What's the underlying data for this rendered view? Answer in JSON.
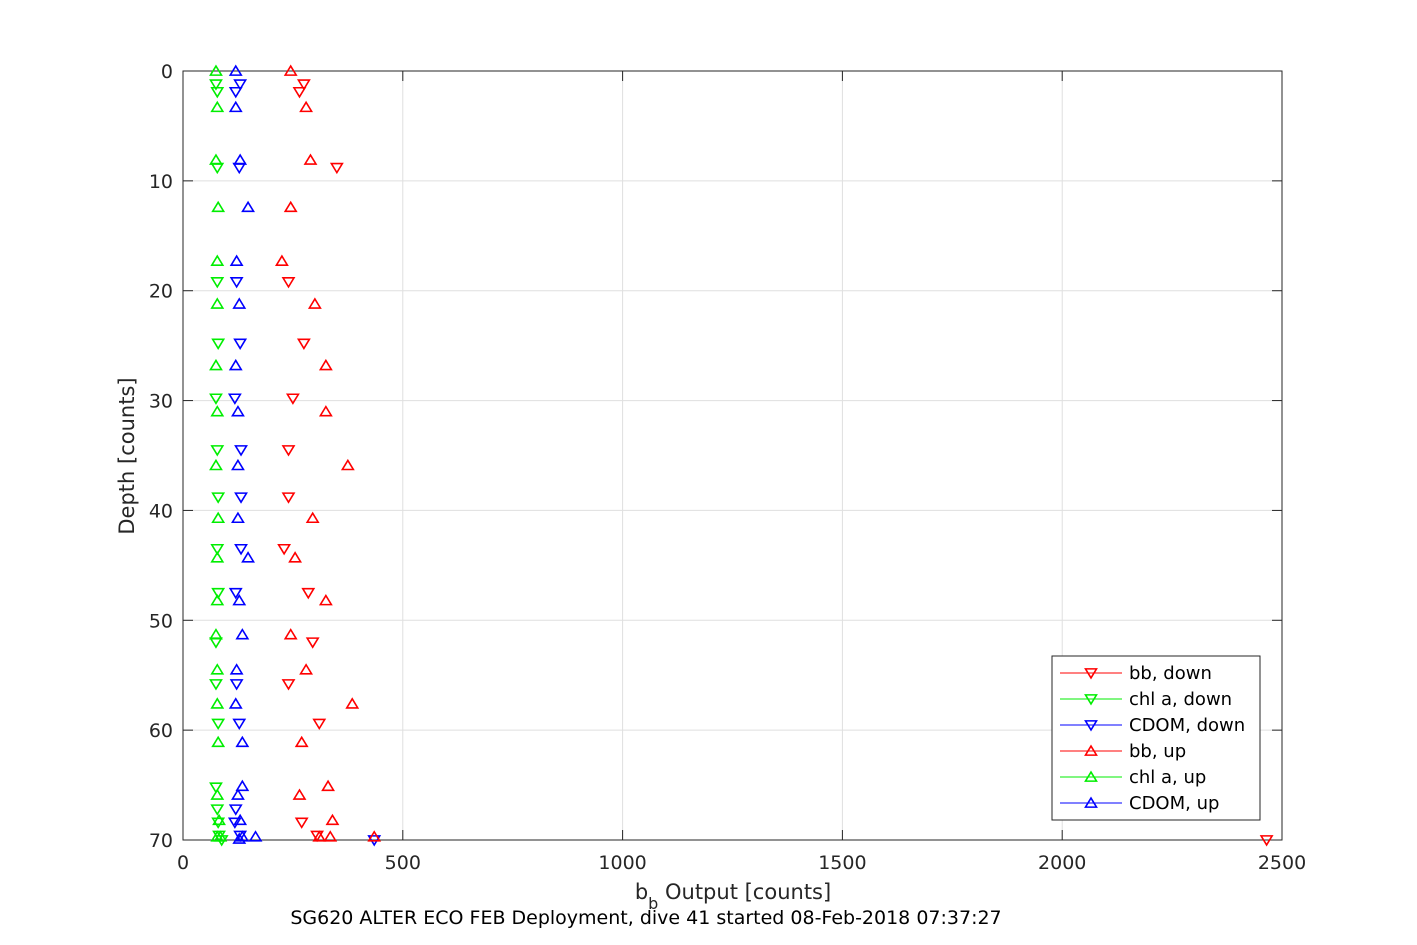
{
  "chart_data": {
    "type": "scatter",
    "xlabel_main": "b",
    "xlabel_sub": "b",
    "xlabel_rest": " Output [counts]",
    "ylabel": "Depth [counts]",
    "caption": "SG620 ALTER ECO FEB Deployment, dive 41 started 08-Feb-2018 07:37:27",
    "xlim": [
      0,
      2500
    ],
    "ylim": [
      0,
      70
    ],
    "y_reversed": true,
    "grid": true,
    "legend_position": "bottom-right",
    "x_ticks": [
      "0",
      "500",
      "1000",
      "1500",
      "2000",
      "2500"
    ],
    "x_tick_values": [
      0,
      500,
      1000,
      1500,
      2000,
      2500
    ],
    "y_ticks": [
      "0",
      "10",
      "20",
      "30",
      "40",
      "50",
      "60",
      "70"
    ],
    "y_tick_values": [
      0,
      10,
      20,
      30,
      40,
      50,
      60,
      70
    ],
    "series": [
      {
        "name": "bb, down",
        "color": "#ff0000",
        "marker": "triangle-down",
        "points": [
          [
            275,
            1.2
          ],
          [
            265,
            1.9
          ],
          [
            350,
            8.8
          ],
          [
            240,
            19.2
          ],
          [
            275,
            24.8
          ],
          [
            250,
            29.8
          ],
          [
            240,
            34.5
          ],
          [
            240,
            38.8
          ],
          [
            230,
            43.5
          ],
          [
            285,
            47.5
          ],
          [
            295,
            52
          ],
          [
            240,
            55.8
          ],
          [
            310,
            59.4
          ],
          [
            270,
            68.4
          ],
          [
            305,
            69.6
          ],
          [
            2465,
            70
          ]
        ]
      },
      {
        "name": "chl a, down",
        "color": "#00ee00",
        "marker": "triangle-down",
        "points": [
          [
            75,
            1.2
          ],
          [
            78,
            1.9
          ],
          [
            78,
            8.8
          ],
          [
            78,
            19.2
          ],
          [
            80,
            24.8
          ],
          [
            75,
            29.8
          ],
          [
            78,
            34.5
          ],
          [
            80,
            38.8
          ],
          [
            78,
            43.5
          ],
          [
            80,
            47.5
          ],
          [
            75,
            52
          ],
          [
            75,
            55.8
          ],
          [
            80,
            59.4
          ],
          [
            75,
            65.2
          ],
          [
            78,
            67.2
          ],
          [
            80,
            68.4
          ],
          [
            82,
            69.6
          ],
          [
            88,
            70
          ]
        ]
      },
      {
        "name": "CDOM, down",
        "color": "#0000ff",
        "marker": "triangle-down",
        "points": [
          [
            130,
            1.2
          ],
          [
            120,
            1.9
          ],
          [
            128,
            8.8
          ],
          [
            122,
            19.2
          ],
          [
            130,
            24.8
          ],
          [
            118,
            29.8
          ],
          [
            132,
            34.5
          ],
          [
            132,
            38.8
          ],
          [
            132,
            43.5
          ],
          [
            120,
            47.5
          ],
          [
            122,
            55.8
          ],
          [
            128,
            59.4
          ],
          [
            120,
            67.2
          ],
          [
            118,
            68.4
          ],
          [
            130,
            69.6
          ],
          [
            435,
            70
          ]
        ]
      },
      {
        "name": "bb, up",
        "color": "#ff0000",
        "marker": "triangle-up",
        "points": [
          [
            245,
            0
          ],
          [
            280,
            3.3
          ],
          [
            290,
            8.1
          ],
          [
            245,
            12.4
          ],
          [
            225,
            17.3
          ],
          [
            300,
            21.2
          ],
          [
            325,
            26.8
          ],
          [
            325,
            31
          ],
          [
            375,
            35.9
          ],
          [
            295,
            40.7
          ],
          [
            255,
            44.3
          ],
          [
            325,
            48.2
          ],
          [
            245,
            51.3
          ],
          [
            280,
            54.5
          ],
          [
            385,
            57.6
          ],
          [
            270,
            61.1
          ],
          [
            330,
            65.1
          ],
          [
            265,
            65.9
          ],
          [
            340,
            68.2
          ],
          [
            310,
            69.7
          ],
          [
            335,
            69.7
          ],
          [
            435,
            69.7
          ]
        ]
      },
      {
        "name": "chl a, up",
        "color": "#00ee00",
        "marker": "triangle-up",
        "points": [
          [
            75,
            0
          ],
          [
            78,
            3.3
          ],
          [
            75,
            8.1
          ],
          [
            80,
            12.4
          ],
          [
            78,
            17.3
          ],
          [
            78,
            21.2
          ],
          [
            75,
            26.8
          ],
          [
            78,
            31
          ],
          [
            75,
            35.9
          ],
          [
            80,
            40.7
          ],
          [
            78,
            44.3
          ],
          [
            78,
            48.2
          ],
          [
            75,
            51.3
          ],
          [
            78,
            54.5
          ],
          [
            78,
            57.6
          ],
          [
            80,
            61.1
          ],
          [
            78,
            65.9
          ],
          [
            82,
            68.2
          ],
          [
            78,
            69.7
          ],
          [
            85,
            69.7
          ]
        ]
      },
      {
        "name": "CDOM, up",
        "color": "#0000ff",
        "marker": "triangle-up",
        "points": [
          [
            120,
            0
          ],
          [
            120,
            3.3
          ],
          [
            130,
            8.1
          ],
          [
            148,
            12.4
          ],
          [
            122,
            17.3
          ],
          [
            128,
            21.2
          ],
          [
            120,
            26.8
          ],
          [
            125,
            31
          ],
          [
            125,
            35.9
          ],
          [
            125,
            40.7
          ],
          [
            148,
            44.3
          ],
          [
            128,
            48.2
          ],
          [
            135,
            51.3
          ],
          [
            122,
            54.5
          ],
          [
            120,
            57.6
          ],
          [
            135,
            61.1
          ],
          [
            135,
            65.1
          ],
          [
            125,
            65.9
          ],
          [
            130,
            68.2
          ],
          [
            135,
            69.7
          ],
          [
            165,
            69.7
          ],
          [
            128,
            69.9
          ]
        ]
      }
    ]
  }
}
